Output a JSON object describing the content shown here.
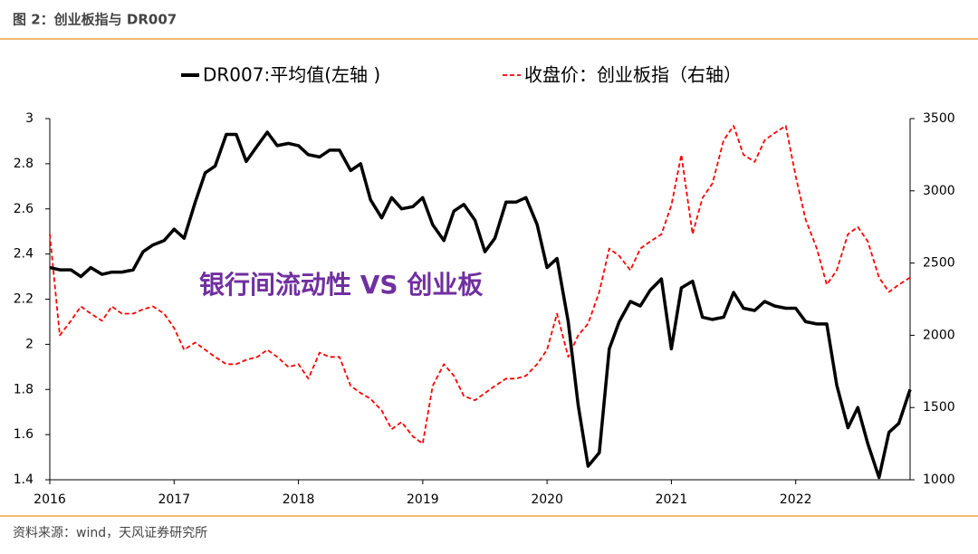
{
  "chart_data": {
    "type": "line",
    "title": "图 2：创业板指与 DR007",
    "source": "资料来源：wind，天风证券研究所",
    "annotation": "银行间流动性 VS 创业板",
    "x": [
      2016.0,
      2016.08,
      2016.17,
      2016.25,
      2016.33,
      2016.42,
      2016.5,
      2016.58,
      2016.67,
      2016.75,
      2016.83,
      2016.92,
      2017.0,
      2017.08,
      2017.17,
      2017.25,
      2017.33,
      2017.42,
      2017.5,
      2017.58,
      2017.67,
      2017.75,
      2017.83,
      2017.92,
      2018.0,
      2018.08,
      2018.17,
      2018.25,
      2018.33,
      2018.42,
      2018.5,
      2018.58,
      2018.67,
      2018.75,
      2018.83,
      2018.92,
      2019.0,
      2019.08,
      2019.17,
      2019.25,
      2019.33,
      2019.42,
      2019.5,
      2019.58,
      2019.67,
      2019.75,
      2019.83,
      2019.92,
      2020.0,
      2020.08,
      2020.17,
      2020.25,
      2020.33,
      2020.42,
      2020.5,
      2020.58,
      2020.67,
      2020.75,
      2020.83,
      2020.92,
      2021.0,
      2021.08,
      2021.17,
      2021.25,
      2021.33,
      2021.42,
      2021.5,
      2021.58,
      2021.67,
      2021.75,
      2021.83,
      2021.92,
      2022.0,
      2022.08,
      2022.17,
      2022.25,
      2022.33,
      2022.42,
      2022.5,
      2022.58,
      2022.67,
      2022.75,
      2022.83,
      2022.92
    ],
    "series": [
      {
        "name": "DR007:平均值(左轴 )",
        "color": "#000000",
        "axis": "y",
        "dashed": false,
        "values": [
          2.34,
          2.33,
          2.33,
          2.3,
          2.34,
          2.31,
          2.32,
          2.32,
          2.33,
          2.41,
          2.44,
          2.46,
          2.51,
          2.47,
          2.63,
          2.76,
          2.79,
          2.93,
          2.93,
          2.81,
          2.88,
          2.94,
          2.88,
          2.89,
          2.88,
          2.84,
          2.83,
          2.86,
          2.86,
          2.77,
          2.8,
          2.64,
          2.56,
          2.65,
          2.6,
          2.61,
          2.65,
          2.53,
          2.46,
          2.59,
          2.62,
          2.55,
          2.41,
          2.47,
          2.63,
          2.63,
          2.65,
          2.53,
          2.34,
          2.38,
          2.1,
          1.73,
          1.46,
          1.52,
          1.98,
          2.1,
          2.19,
          2.17,
          2.24,
          2.29,
          1.98,
          2.25,
          2.28,
          2.12,
          2.11,
          2.12,
          2.23,
          2.16,
          2.15,
          2.19,
          2.17,
          2.16,
          2.16,
          2.1,
          2.09,
          2.09,
          1.82,
          1.63,
          1.72,
          1.56,
          1.41,
          1.61,
          1.65,
          1.8
        ]
      },
      {
        "name": "收盘价：创业板指（右轴）",
        "color": "#ff0000",
        "axis": "y2",
        "dashed": true,
        "values": [
          2700,
          2000,
          2100,
          2200,
          2150,
          2100,
          2200,
          2150,
          2150,
          2180,
          2200,
          2150,
          2050,
          1900,
          1950,
          1900,
          1850,
          1800,
          1800,
          1830,
          1850,
          1900,
          1850,
          1780,
          1800,
          1700,
          1880,
          1850,
          1850,
          1650,
          1600,
          1560,
          1480,
          1350,
          1400,
          1300,
          1250,
          1650,
          1800,
          1720,
          1580,
          1550,
          1600,
          1650,
          1700,
          1700,
          1720,
          1800,
          1900,
          2150,
          1850,
          2000,
          2080,
          2300,
          2600,
          2550,
          2450,
          2600,
          2650,
          2700,
          2900,
          3250,
          2700,
          2950,
          3050,
          3350,
          3450,
          3250,
          3200,
          3350,
          3400,
          3450,
          3100,
          2800,
          2600,
          2350,
          2450,
          2700,
          2750,
          2650,
          2400,
          2300,
          2350,
          2400
        ]
      }
    ],
    "xlim": [
      2016,
      2022.92
    ],
    "xticks": [
      2016,
      2017,
      2018,
      2019,
      2020,
      2021,
      2022
    ],
    "ylim": [
      1.4,
      3
    ],
    "yticks": [
      1.4,
      1.6,
      1.8,
      2,
      2.2,
      2.4,
      2.6,
      2.8,
      3
    ],
    "y2lim": [
      1000,
      3500
    ],
    "y2ticks": [
      1000,
      1500,
      2000,
      2500,
      3000,
      3500
    ]
  }
}
